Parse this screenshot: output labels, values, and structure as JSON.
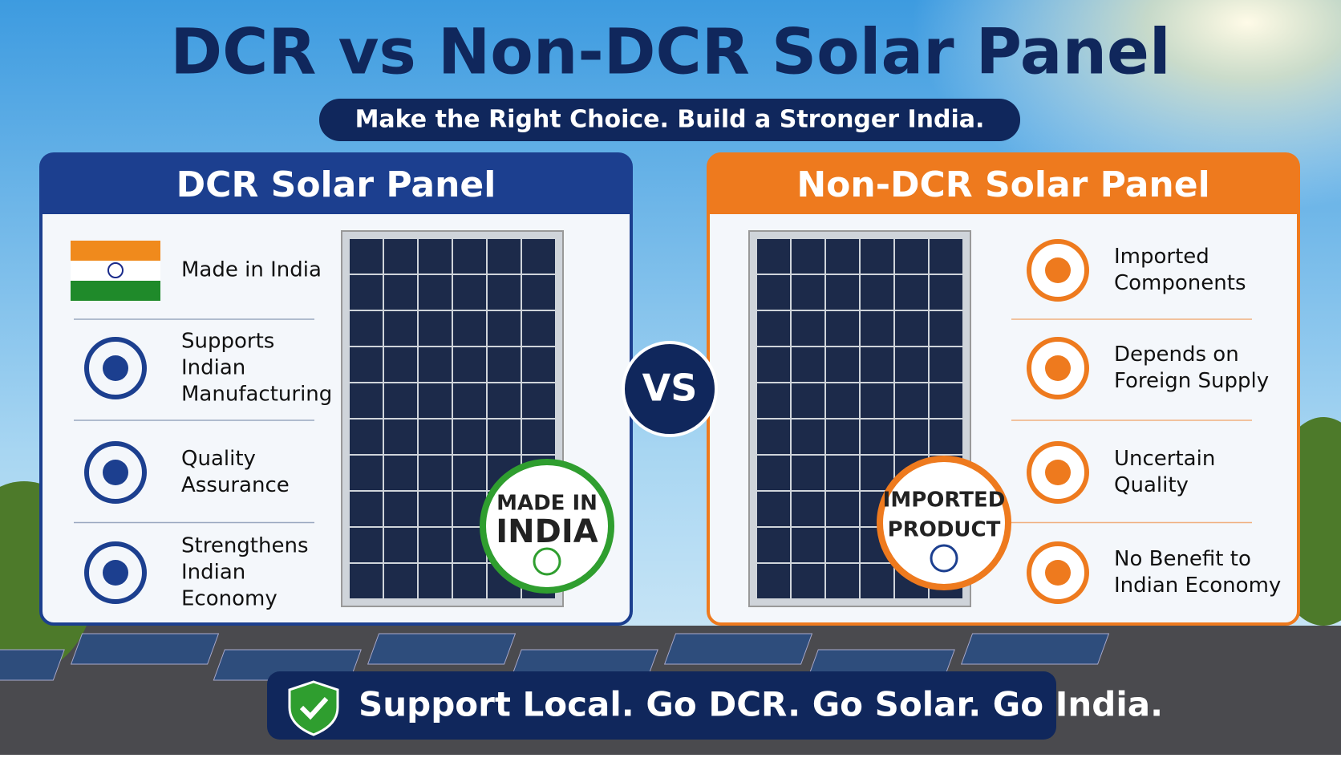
{
  "title": "DCR vs Non-DCR Solar Panel",
  "subtitle": "Make the Right Choice. Build a Stronger India.",
  "left": {
    "title": "DCR Solar Panel",
    "badge": [
      "MADE IN",
      "INDIA"
    ],
    "items": [
      [
        "Made in India"
      ],
      [
        "Supports",
        "Indian",
        "Manufacturing"
      ],
      [
        "Quality",
        "Assurance"
      ],
      [
        "Strengthens",
        "Indian",
        "Economy"
      ]
    ]
  },
  "vs": "VS",
  "right": {
    "title": "Non-DCR Solar Panel",
    "badge": [
      "IMPORTED",
      "PRODUCT"
    ],
    "items": [
      [
        "Imported",
        "Components"
      ],
      [
        "Depends on",
        "Foreign Supply"
      ],
      [
        "Uncertain",
        "Quality"
      ],
      [
        "No Benefit to",
        "Indian Economy"
      ]
    ]
  },
  "footer": "Support Local. Go DCR. Go Solar. Go India."
}
